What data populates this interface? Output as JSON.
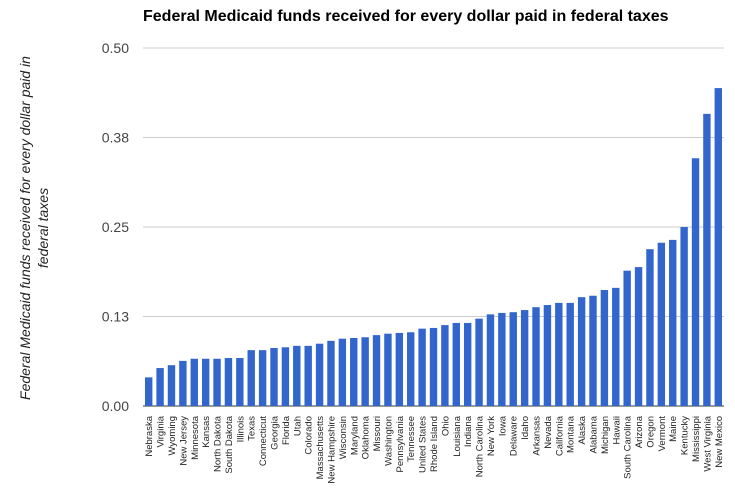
{
  "chart_data": {
    "type": "bar",
    "title": "Federal Medicaid funds received for every dollar paid in federal taxes",
    "xlabel": "",
    "ylabel": "Federal Medicaid funds received for every dollar paid in federal taxes",
    "ylim": [
      0,
      0.5
    ],
    "yticks": [
      "0.00",
      "0.13",
      "0.25",
      "0.38",
      "0.50"
    ],
    "grid": true,
    "color": "#3366cc",
    "categories": [
      "Nebraska",
      "Virginia",
      "Wyoming",
      "New Jersey",
      "Minnesota",
      "Kansas",
      "North Dakota",
      "South Dakota",
      "Illinois",
      "Texas",
      "Connecticut",
      "Georgia",
      "Florida",
      "Utah",
      "Colorado",
      "Massachusetts",
      "New Hampshire",
      "Wisconsin",
      "Maryland",
      "Oklahoma",
      "Missouri",
      "Washington",
      "Pennsylvania",
      "Tennessee",
      "United States",
      "Rhode Island",
      "Ohio",
      "Louisiana",
      "Indiana",
      "North Carolina",
      "New York",
      "Iowa",
      "Delaware",
      "Idaho",
      "Arkansas",
      "Nevada",
      "California",
      "Montana",
      "Alaska",
      "Alabama",
      "Michigan",
      "Hawaii",
      "South Carolina",
      "Arizona",
      "Oregon",
      "Vermont",
      "Maine",
      "Kentucky",
      "Mississippi",
      "West Virginia",
      "New Mexico"
    ],
    "values": [
      0.04,
      0.053,
      0.057,
      0.063,
      0.066,
      0.066,
      0.066,
      0.067,
      0.067,
      0.078,
      0.078,
      0.081,
      0.082,
      0.084,
      0.084,
      0.087,
      0.091,
      0.094,
      0.095,
      0.096,
      0.099,
      0.101,
      0.102,
      0.103,
      0.108,
      0.109,
      0.113,
      0.116,
      0.116,
      0.122,
      0.128,
      0.13,
      0.131,
      0.134,
      0.138,
      0.141,
      0.144,
      0.144,
      0.152,
      0.154,
      0.162,
      0.165,
      0.189,
      0.194,
      0.219,
      0.228,
      0.232,
      0.25,
      0.346,
      0.408,
      0.444
    ]
  }
}
